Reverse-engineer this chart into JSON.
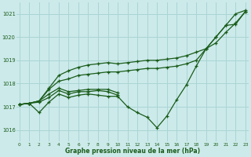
{
  "xlabel": "Graphe pression niveau de la mer (hPa)",
  "background_color": "#cceaea",
  "grid_color": "#aad4d4",
  "line_color": "#1a5c1a",
  "ylim": [
    1015.5,
    1021.5
  ],
  "xlim": [
    -0.3,
    23.3
  ],
  "yticks": [
    1016,
    1017,
    1018,
    1019,
    1020,
    1021
  ],
  "xticks": [
    0,
    1,
    2,
    3,
    4,
    5,
    6,
    7,
    8,
    9,
    10,
    11,
    12,
    13,
    14,
    15,
    16,
    17,
    18,
    19,
    20,
    21,
    22,
    23
  ],
  "series": [
    {
      "x": [
        0,
        1,
        2,
        3,
        4,
        5,
        6,
        7,
        8,
        9,
        10,
        11,
        12,
        13,
        14,
        15,
        16,
        17,
        18,
        19,
        20,
        21,
        22,
        23
      ],
      "y": [
        1017.1,
        1017.15,
        1016.75,
        1017.2,
        1017.55,
        1017.4,
        1017.5,
        1017.55,
        1017.5,
        1017.45,
        1017.45,
        1017.0,
        1016.75,
        1016.55,
        1016.1,
        1016.6,
        1017.3,
        1017.95,
        1018.75,
        1019.5,
        1020.0,
        1020.5,
        1021.0,
        1021.15
      ]
    },
    {
      "x": [
        0,
        1,
        2,
        3,
        4,
        5,
        6,
        7,
        8,
        9,
        10,
        11,
        12,
        13,
        14,
        15,
        16,
        17,
        18,
        19,
        20,
        21,
        22,
        23
      ],
      "y": [
        1017.1,
        1017.15,
        1017.25,
        1017.8,
        1018.35,
        1018.55,
        1018.7,
        1018.8,
        1018.85,
        1018.9,
        1018.85,
        1018.9,
        1018.95,
        1019.0,
        1019.0,
        1019.05,
        1019.1,
        1019.2,
        1019.35,
        1019.5,
        1020.0,
        1020.5,
        1020.55,
        1021.1
      ]
    },
    {
      "x": [
        0,
        1,
        2,
        3,
        4,
        5,
        6,
        7,
        8,
        9,
        10,
        11,
        12,
        13,
        14,
        15,
        16,
        17,
        18,
        19,
        20,
        21,
        22,
        23
      ],
      "y": [
        1017.1,
        1017.15,
        1017.25,
        1017.75,
        1018.1,
        1018.2,
        1018.35,
        1018.4,
        1018.45,
        1018.5,
        1018.5,
        1018.55,
        1018.6,
        1018.65,
        1018.65,
        1018.7,
        1018.75,
        1018.85,
        1019.0,
        1019.5,
        1019.75,
        1020.2,
        1020.6,
        1021.1
      ]
    },
    {
      "x": [
        0,
        1,
        2,
        3,
        4,
        5,
        6,
        7,
        8,
        9,
        10
      ],
      "y": [
        1017.1,
        1017.15,
        1017.2,
        1017.4,
        1017.7,
        1017.55,
        1017.65,
        1017.65,
        1017.7,
        1017.65,
        1017.5
      ]
    },
    {
      "x": [
        0,
        1,
        2,
        3,
        4,
        5,
        6,
        7,
        8,
        9,
        10
      ],
      "y": [
        1017.1,
        1017.15,
        1017.25,
        1017.55,
        1017.8,
        1017.65,
        1017.7,
        1017.75,
        1017.75,
        1017.75,
        1017.6
      ]
    }
  ]
}
